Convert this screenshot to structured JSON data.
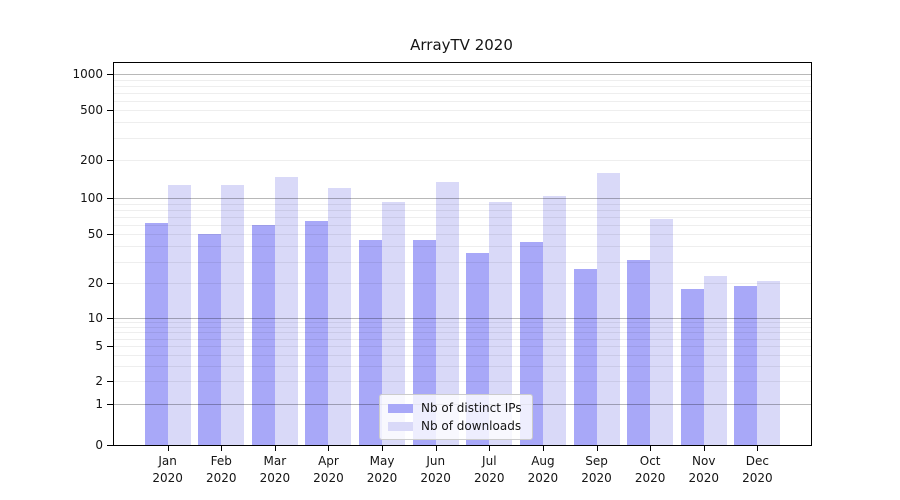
{
  "title": "ArrayTV 2020",
  "chart_data": {
    "type": "bar",
    "title": "ArrayTV 2020",
    "xlabel": "",
    "ylabel": "",
    "yscale": "log (custom 1-2-5 ticks, linear below 1)",
    "ylim": [
      0,
      1230
    ],
    "grid": true,
    "legend_position": "lower center",
    "categories": [
      "Jan 2020",
      "Feb 2020",
      "Mar 2020",
      "Apr 2020",
      "May 2020",
      "Jun 2020",
      "Jul 2020",
      "Aug 2020",
      "Sep 2020",
      "Oct 2020",
      "Nov 2020",
      "Dec 2020"
    ],
    "series": [
      {
        "name": "Nb of distinct IPs",
        "color": "#a8a8f8",
        "values": [
          62,
          50,
          60,
          65,
          45,
          45,
          35,
          43,
          26,
          31,
          18,
          19
        ]
      },
      {
        "name": "Nb of downloads",
        "color": "#d9d9f8",
        "values": [
          126,
          126,
          147,
          120,
          94,
          135,
          94,
          105,
          158,
          67,
          23,
          21
        ]
      }
    ],
    "yticks": [
      0,
      1,
      2,
      5,
      10,
      20,
      50,
      100,
      200,
      500,
      1000
    ],
    "ytick_labels": [
      "0",
      "1",
      "2",
      "5",
      "10",
      "20",
      "50",
      "100",
      "200",
      "500",
      "1000"
    ]
  },
  "colors": {
    "bar_distinct_ips": "#a8a8f8",
    "bar_downloads": "#d9d9f8",
    "grid_major": "rgba(0,0,0,0.28)",
    "grid_minor": "rgba(0,0,0,0.065)",
    "axis": "#000000",
    "text": "#151515"
  }
}
